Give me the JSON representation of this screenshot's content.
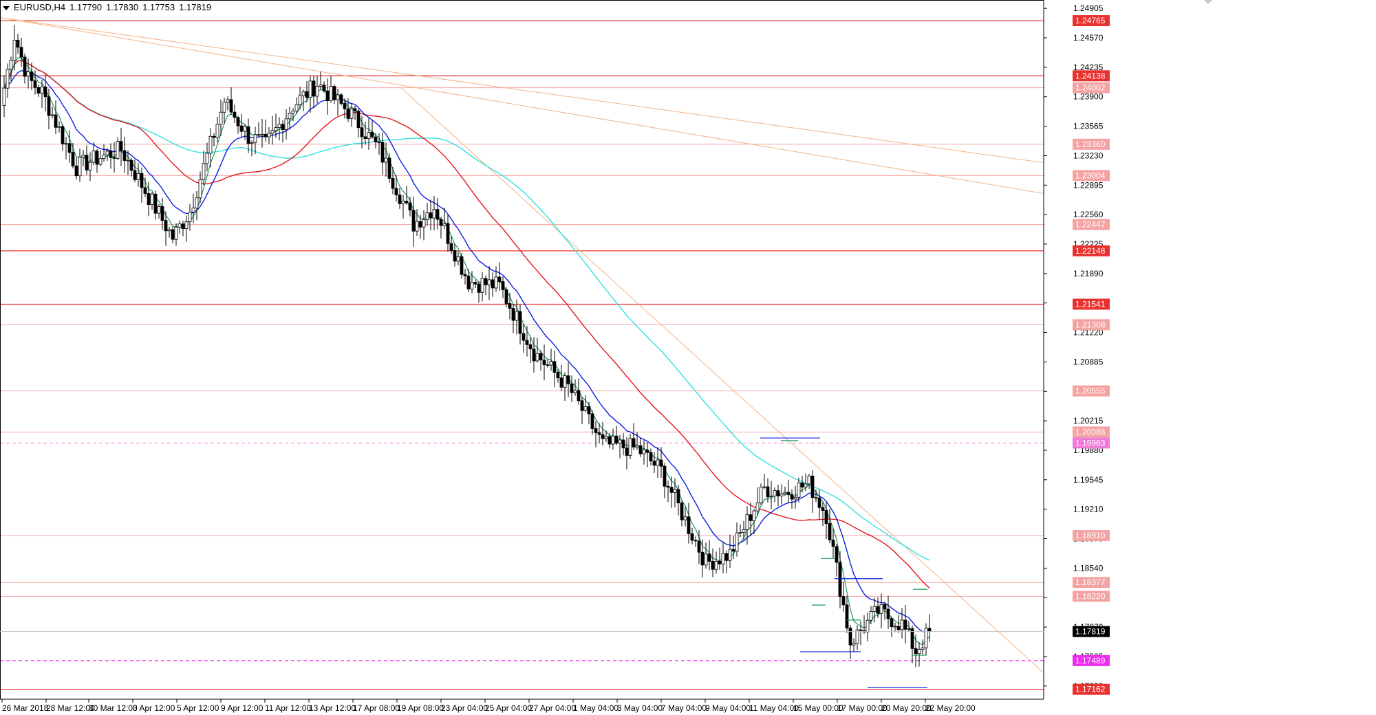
{
  "header": {
    "symbol": "EURUSD,H4",
    "open": "1.17790",
    "high": "1.17830",
    "low": "1.17753",
    "close": "1.17819"
  },
  "chart_data": {
    "type": "candlestick",
    "symbol": "EURUSD",
    "timeframe": "H4",
    "ylim": [
      1.1705,
      1.25
    ],
    "y_ticks": [
      1.24905,
      1.2457,
      1.24235,
      1.239,
      1.23565,
      1.2323,
      1.22895,
      1.2256,
      1.22225,
      1.2189,
      1.21555,
      1.2122,
      1.20885,
      1.2055,
      1.20215,
      1.1988,
      1.19545,
      1.1921,
      1.18875,
      1.1854,
      1.18205,
      1.1787,
      1.17535,
      1.172
    ],
    "x_labels": [
      "26 Mar 2018",
      "28 Mar 12:00",
      "30 Mar 12:00",
      "3 Apr 12:00",
      "5 Apr 12:00",
      "9 Apr 12:00",
      "11 Apr 12:00",
      "13 Apr 12:00",
      "17 Apr 08:00",
      "19 Apr 08:00",
      "23 Apr 04:00",
      "25 Apr 04:00",
      "27 Apr 04:00",
      "1 May 04:00",
      "3 May 04:00",
      "7 May 04:00",
      "9 May 04:00",
      "11 May 04:00",
      "15 May 00:00",
      "17 May 00:00",
      "20 May 20:00",
      "22 May 20:00"
    ],
    "price_levels": [
      {
        "label": "1.24765",
        "value": 1.24765,
        "color": "#e8322f",
        "style": "solid",
        "strong": true
      },
      {
        "label": "1.24138",
        "value": 1.24138,
        "color": "#e8322f",
        "style": "solid",
        "strong": true
      },
      {
        "label": "1.24002",
        "value": 1.24002,
        "color": "#f4a3a3",
        "style": "solid",
        "strong": false
      },
      {
        "label": "1.23360",
        "value": 1.2336,
        "color": "#f4a3a3",
        "style": "solid",
        "strong": false
      },
      {
        "label": "1.23004",
        "value": 1.23004,
        "color": "#f4a3a3",
        "style": "solid",
        "strong": false
      },
      {
        "label": "1.22447",
        "value": 1.22447,
        "color": "#f4a3a3",
        "style": "solid",
        "strong": false
      },
      {
        "label": "1.22148",
        "value": 1.22148,
        "color": "#e8322f",
        "style": "solid",
        "strong": true
      },
      {
        "label": "1.21541",
        "value": 1.21541,
        "color": "#e8322f",
        "style": "solid",
        "strong": true
      },
      {
        "label": "1.21308",
        "value": 1.21308,
        "color": "#f4a3a3",
        "style": "solid",
        "strong": false
      },
      {
        "label": "1.20555",
        "value": 1.20555,
        "color": "#f4a3a3",
        "style": "solid",
        "strong": false
      },
      {
        "label": "1.20088",
        "value": 1.20088,
        "color": "#f4a3a3",
        "style": "solid",
        "strong": false
      },
      {
        "label": "1.19963",
        "value": 1.19963,
        "color": "#f07ad8",
        "style": "dashed",
        "strong": false
      },
      {
        "label": "1.18910",
        "value": 1.1891,
        "color": "#f4a3a3",
        "style": "solid",
        "strong": false
      },
      {
        "label": "1.18377",
        "value": 1.18377,
        "color": "#f4a3a3",
        "style": "solid",
        "strong": false
      },
      {
        "label": "1.18220",
        "value": 1.1822,
        "color": "#f4a3a3",
        "style": "solid",
        "strong": false
      },
      {
        "label": "1.17489",
        "value": 1.17489,
        "color": "#ee2cee",
        "style": "dashed",
        "strong": true
      },
      {
        "label": "1.17162",
        "value": 1.17162,
        "color": "#e8322f",
        "style": "solid",
        "strong": true
      }
    ],
    "current_price": "1.17819",
    "first_bar_open": 1.238,
    "last_bar_close": 1.17819,
    "colors": {
      "bull_body": "#ffffff",
      "bear_body": "#000000",
      "wick": "#000000",
      "ma_fast": "#1a9b5a",
      "ma_mid": "#0b1ee0",
      "ma_slow": "#e8131b",
      "ma_long": "#2fe0e0",
      "trendline": "#f5b283",
      "axis_text": "#000000",
      "current_box": "#000000",
      "support_marker": "#0b1ee0"
    }
  }
}
